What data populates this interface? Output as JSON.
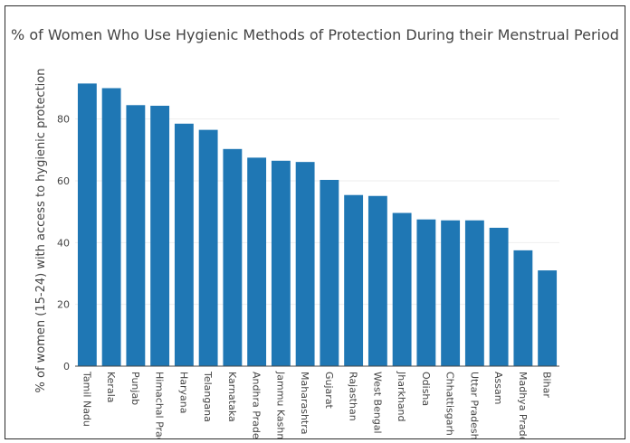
{
  "colors": {
    "bar": "#1f77b4",
    "grid": "#eeeeee",
    "text": "#444444"
  },
  "chart_data": {
    "type": "bar",
    "title": "% of Women Who Use Hygienic Methods of Protection During their Menstrual Period",
    "xlabel": "",
    "ylabel": "% of women (15-24) with access to hygienic protection",
    "ylim": [
      0,
      96
    ],
    "yticks": [
      0,
      20,
      40,
      60,
      80
    ],
    "grid": true,
    "categories": [
      "Tamil Nadu",
      "Kerala",
      "Punjab",
      "Himachal Pradesh",
      "Haryana",
      "Telangana",
      "Karnataka",
      "Andhra Pradesh",
      "Jammu Kashmir",
      "Maharashtra",
      "Gujarat",
      "Rajasthan",
      "West Bengal",
      "Jharkhand",
      "Odisha",
      "Chhattisgarh",
      "Uttar Pradesh",
      "Assam",
      "Madhya Pradesh",
      "Bihar"
    ],
    "values": [
      91.5,
      90.0,
      84.5,
      84.3,
      78.5,
      76.5,
      70.3,
      67.5,
      66.5,
      66.1,
      60.3,
      55.4,
      55.1,
      49.6,
      47.5,
      47.2,
      47.2,
      44.8,
      37.5,
      31.0
    ]
  }
}
